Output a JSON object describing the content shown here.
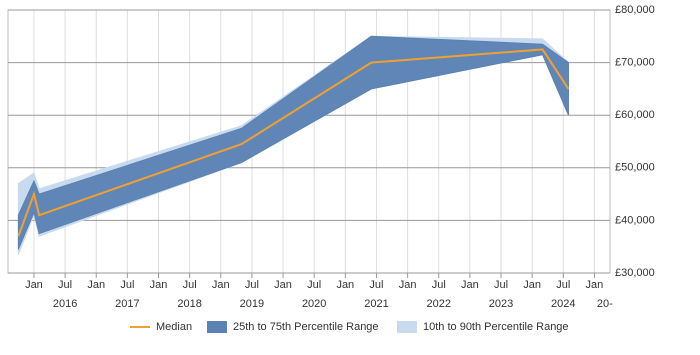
{
  "chart_data": {
    "type": "band-line",
    "x": [
      "2015-10",
      "2016-01",
      "2016-02",
      "2019-05",
      "2021-06",
      "2024-03",
      "2024-08"
    ],
    "series": [
      {
        "name": "Median",
        "color": "#f0a030",
        "values": [
          37000,
          45000,
          41000,
          54500,
          70000,
          72500,
          65000
        ]
      },
      {
        "name": "25th to 75th Percentile Range",
        "color": "#5b82b3",
        "lower": [
          34500,
          41500,
          37500,
          51000,
          65000,
          71500,
          60000
        ],
        "upper": [
          41000,
          47500,
          45000,
          57500,
          75000,
          73500,
          70000
        ]
      },
      {
        "name": "10th to 90th Percentile Range",
        "color": "#c8dbee",
        "lower": [
          33500,
          41000,
          37000,
          51000,
          65000,
          71500,
          60000
        ],
        "upper": [
          47000,
          49000,
          46000,
          58000,
          75000,
          74500,
          70000
        ]
      }
    ],
    "xlim": [
      "2015-08",
      "2025-04"
    ],
    "xticks": [
      {
        "value": "2016-01",
        "label": "Jan"
      },
      {
        "value": "2016-07",
        "label": "Jul"
      },
      {
        "value": "2017-01",
        "label": "Jan"
      },
      {
        "value": "2017-07",
        "label": "Jul"
      },
      {
        "value": "2018-01",
        "label": "Jan"
      },
      {
        "value": "2018-07",
        "label": "Jul"
      },
      {
        "value": "2019-01",
        "label": "Jan"
      },
      {
        "value": "2019-07",
        "label": "Jul"
      },
      {
        "value": "2020-01",
        "label": "Jan"
      },
      {
        "value": "2020-07",
        "label": "Jul"
      },
      {
        "value": "2021-01",
        "label": "Jan"
      },
      {
        "value": "2021-07",
        "label": "Jul"
      },
      {
        "value": "2022-01",
        "label": "Jan"
      },
      {
        "value": "2022-07",
        "label": "Jul"
      },
      {
        "value": "2023-01",
        "label": "Jan"
      },
      {
        "value": "2023-07",
        "label": "Jul"
      },
      {
        "value": "2024-01",
        "label": "Jan"
      },
      {
        "value": "2024-07",
        "label": "Jul"
      },
      {
        "value": "2025-01",
        "label": "Jan"
      }
    ],
    "year_labels": [
      {
        "value": "2016-07",
        "label": "2016"
      },
      {
        "value": "2017-07",
        "label": "2017"
      },
      {
        "value": "2018-07",
        "label": "2018"
      },
      {
        "value": "2019-07",
        "label": "2019"
      },
      {
        "value": "2020-07",
        "label": "2020"
      },
      {
        "value": "2021-07",
        "label": "2021"
      },
      {
        "value": "2022-07",
        "label": "2022"
      },
      {
        "value": "2023-07",
        "label": "2023"
      },
      {
        "value": "2024-07",
        "label": "2024"
      },
      {
        "value": "2025-03",
        "label": "20-"
      }
    ],
    "ylim": [
      30000,
      80000
    ],
    "yticks": [
      {
        "value": 30000,
        "label": "£30,000"
      },
      {
        "value": 40000,
        "label": "£40,000"
      },
      {
        "value": 50000,
        "label": "£50,000"
      },
      {
        "value": 60000,
        "label": "£60,000"
      },
      {
        "value": 70000,
        "label": "£70,000"
      },
      {
        "value": 80000,
        "label": "£80,000"
      }
    ],
    "grid": true
  }
}
